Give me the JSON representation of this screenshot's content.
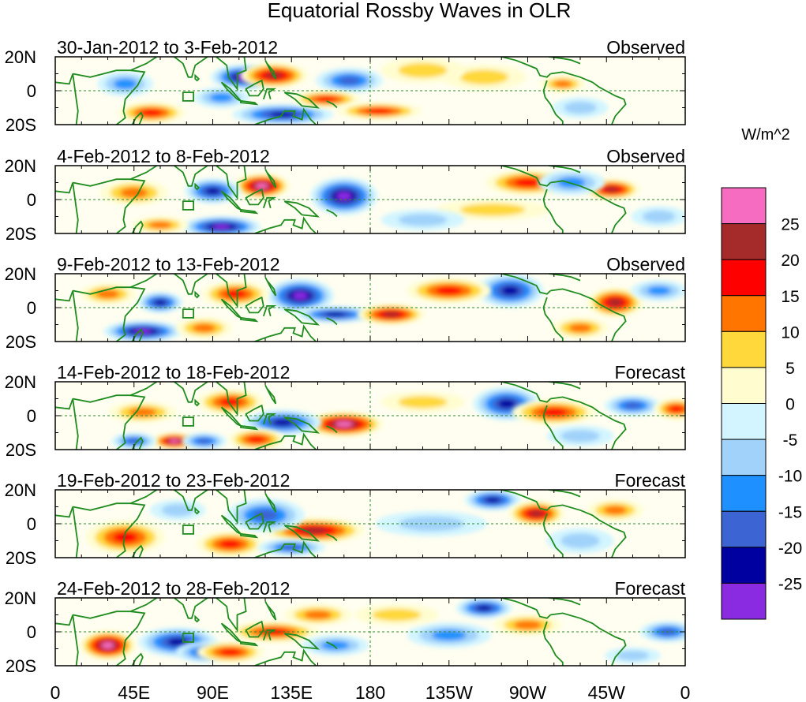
{
  "chart_data": {
    "type": "heatmap",
    "title": "Equatorial Rossby Waves in OLR",
    "units_label": "W/m^2",
    "x_ticks": [
      "0",
      "45E",
      "90E",
      "135E",
      "180",
      "135W",
      "90W",
      "45W",
      "0"
    ],
    "y_ticks": [
      "20N",
      "0",
      "20S"
    ],
    "lon_range": [
      0,
      360
    ],
    "lat_range": [
      -20,
      20
    ],
    "colorbar": {
      "levels": [
        "25",
        "20",
        "15",
        "10",
        "5",
        "0",
        "-5",
        "-10",
        "-15",
        "-20",
        "-25"
      ],
      "colors": [
        "#f66cc0",
        "#a52a2a",
        "#ff0000",
        "#ff7500",
        "#ffd83b",
        "#fffdd0",
        "#d2f5ff",
        "#a0d2fa",
        "#1e90ff",
        "#3c64d2",
        "#0000a0",
        "#8a2be2"
      ]
    },
    "panels": [
      {
        "date_range": "30-Jan-2012 to 3-Feb-2012",
        "status": "Observed",
        "anomalies": [
          {
            "lon": 108,
            "lat": 8,
            "value": -26,
            "wlon": 12,
            "wlat": 6
          },
          {
            "lon": 125,
            "lat": 9,
            "value": 24,
            "wlon": 12,
            "wlat": 6
          },
          {
            "lon": 168,
            "lat": 6,
            "value": -20,
            "wlon": 12,
            "wlat": 6
          },
          {
            "lon": 130,
            "lat": -14,
            "value": -25,
            "wlon": 18,
            "wlat": 5
          },
          {
            "lon": 95,
            "lat": -4,
            "value": -15,
            "wlon": 10,
            "wlat": 5
          },
          {
            "lon": 55,
            "lat": -13,
            "value": 16,
            "wlon": 12,
            "wlat": 5
          },
          {
            "lon": 155,
            "lat": -5,
            "value": 16,
            "wlon": 12,
            "wlat": 4
          },
          {
            "lon": 185,
            "lat": -12,
            "value": 16,
            "wlon": 15,
            "wlat": 4
          },
          {
            "lon": 40,
            "lat": 4,
            "value": -12,
            "wlon": 10,
            "wlat": 6
          },
          {
            "lon": 290,
            "lat": 4,
            "value": 15,
            "wlon": 8,
            "wlat": 4
          },
          {
            "lon": 300,
            "lat": -10,
            "value": -10,
            "wlon": 10,
            "wlat": 5
          },
          {
            "lon": 245,
            "lat": 8,
            "value": 10,
            "wlon": 15,
            "wlat": 6
          },
          {
            "lon": 210,
            "lat": 12,
            "value": 8,
            "wlon": 15,
            "wlat": 6
          }
        ]
      },
      {
        "date_range": "4-Feb-2012 to 8-Feb-2012",
        "status": "Observed",
        "anomalies": [
          {
            "lon": 118,
            "lat": 8,
            "value": 26,
            "wlon": 10,
            "wlat": 6
          },
          {
            "lon": 165,
            "lat": 2,
            "value": -26,
            "wlon": 12,
            "wlat": 9
          },
          {
            "lon": 95,
            "lat": -16,
            "value": -26,
            "wlon": 14,
            "wlat": 5
          },
          {
            "lon": 90,
            "lat": 5,
            "value": -22,
            "wlon": 10,
            "wlat": 6
          },
          {
            "lon": 270,
            "lat": 10,
            "value": 18,
            "wlon": 15,
            "wlat": 6
          },
          {
            "lon": 318,
            "lat": 6,
            "value": 22,
            "wlon": 10,
            "wlat": 5
          },
          {
            "lon": 295,
            "lat": 10,
            "value": -14,
            "wlon": 12,
            "wlat": 6
          },
          {
            "lon": 45,
            "lat": 4,
            "value": 12,
            "wlon": 12,
            "wlat": 6
          },
          {
            "lon": 250,
            "lat": -6,
            "value": 10,
            "wlon": 20,
            "wlat": 5
          },
          {
            "lon": 210,
            "lat": -12,
            "value": -8,
            "wlon": 15,
            "wlat": 5
          },
          {
            "lon": 60,
            "lat": -15,
            "value": 15,
            "wlon": 10,
            "wlat": 4
          },
          {
            "lon": 345,
            "lat": -10,
            "value": -8,
            "wlon": 10,
            "wlat": 5
          }
        ]
      },
      {
        "date_range": "9-Feb-2012 to 13-Feb-2012",
        "status": "Observed",
        "anomalies": [
          {
            "lon": 140,
            "lat": 7,
            "value": -26,
            "wlon": 12,
            "wlat": 8
          },
          {
            "lon": 160,
            "lat": -4,
            "value": -22,
            "wlon": 14,
            "wlat": 4
          },
          {
            "lon": 103,
            "lat": 8,
            "value": 18,
            "wlon": 12,
            "wlat": 6
          },
          {
            "lon": 192,
            "lat": -4,
            "value": 22,
            "wlon": 12,
            "wlat": 5
          },
          {
            "lon": 260,
            "lat": 10,
            "value": -24,
            "wlon": 12,
            "wlat": 8
          },
          {
            "lon": 225,
            "lat": 10,
            "value": 18,
            "wlon": 15,
            "wlat": 6
          },
          {
            "lon": 60,
            "lat": 3,
            "value": -22,
            "wlon": 8,
            "wlat": 5
          },
          {
            "lon": 50,
            "lat": -14,
            "value": -26,
            "wlon": 14,
            "wlat": 5
          },
          {
            "lon": 320,
            "lat": 3,
            "value": 22,
            "wlon": 10,
            "wlat": 7
          },
          {
            "lon": 85,
            "lat": -12,
            "value": 14,
            "wlon": 10,
            "wlat": 5
          },
          {
            "lon": 30,
            "lat": 8,
            "value": 12,
            "wlon": 10,
            "wlat": 5
          },
          {
            "lon": 300,
            "lat": -12,
            "value": 12,
            "wlon": 10,
            "wlat": 5
          },
          {
            "lon": 345,
            "lat": 10,
            "value": -12,
            "wlon": 10,
            "wlat": 5
          }
        ]
      },
      {
        "date_range": "14-Feb-2012 to 18-Feb-2012",
        "status": "Forecast",
        "anomalies": [
          {
            "lon": 165,
            "lat": -5,
            "value": 26,
            "wlon": 14,
            "wlat": 6
          },
          {
            "lon": 130,
            "lat": -4,
            "value": -22,
            "wlon": 14,
            "wlat": 6
          },
          {
            "lon": 100,
            "lat": 8,
            "value": 18,
            "wlon": 12,
            "wlat": 6
          },
          {
            "lon": 115,
            "lat": -14,
            "value": 20,
            "wlon": 10,
            "wlat": 5
          },
          {
            "lon": 258,
            "lat": 7,
            "value": -24,
            "wlon": 12,
            "wlat": 8
          },
          {
            "lon": 285,
            "lat": 2,
            "value": 20,
            "wlon": 15,
            "wlat": 6
          },
          {
            "lon": 330,
            "lat": 6,
            "value": -20,
            "wlon": 10,
            "wlat": 5
          },
          {
            "lon": 355,
            "lat": 4,
            "value": 18,
            "wlon": 8,
            "wlat": 5
          },
          {
            "lon": 68,
            "lat": -15,
            "value": 26,
            "wlon": 8,
            "wlat": 4
          },
          {
            "lon": 45,
            "lat": -15,
            "value": -20,
            "wlon": 8,
            "wlat": 4
          },
          {
            "lon": 85,
            "lat": -15,
            "value": -20,
            "wlon": 8,
            "wlat": 4
          },
          {
            "lon": 50,
            "lat": 2,
            "value": 14,
            "wlon": 12,
            "wlat": 5
          },
          {
            "lon": 210,
            "lat": 8,
            "value": 8,
            "wlon": 15,
            "wlat": 5
          },
          {
            "lon": 300,
            "lat": -12,
            "value": -10,
            "wlon": 12,
            "wlat": 5
          }
        ]
      },
      {
        "date_range": "19-Feb-2012 to 23-Feb-2012",
        "status": "Forecast",
        "anomalies": [
          {
            "lon": 148,
            "lat": -4,
            "value": 22,
            "wlon": 18,
            "wlat": 6
          },
          {
            "lon": 40,
            "lat": -8,
            "value": 18,
            "wlon": 14,
            "wlat": 8
          },
          {
            "lon": 100,
            "lat": -12,
            "value": 18,
            "wlon": 12,
            "wlat": 6
          },
          {
            "lon": 120,
            "lat": 5,
            "value": -18,
            "wlon": 14,
            "wlat": 8
          },
          {
            "lon": 250,
            "lat": 14,
            "value": -24,
            "wlon": 10,
            "wlat": 5
          },
          {
            "lon": 275,
            "lat": 6,
            "value": 22,
            "wlon": 10,
            "wlat": 6
          },
          {
            "lon": 135,
            "lat": -14,
            "value": -20,
            "wlon": 12,
            "wlat": 4
          },
          {
            "lon": 320,
            "lat": 8,
            "value": 14,
            "wlon": 10,
            "wlat": 5
          },
          {
            "lon": 300,
            "lat": -10,
            "value": -10,
            "wlon": 12,
            "wlat": 6
          },
          {
            "lon": 215,
            "lat": 0,
            "value": -8,
            "wlon": 20,
            "wlat": 6
          },
          {
            "lon": 70,
            "lat": 8,
            "value": -8,
            "wlon": 10,
            "wlat": 5
          }
        ]
      },
      {
        "date_range": "24-Feb-2012 to 28-Feb-2012",
        "status": "Forecast",
        "anomalies": [
          {
            "lon": 30,
            "lat": -8,
            "value": 26,
            "wlon": 10,
            "wlat": 7
          },
          {
            "lon": 70,
            "lat": -6,
            "value": -22,
            "wlon": 14,
            "wlat": 7
          },
          {
            "lon": 85,
            "lat": -12,
            "value": -18,
            "wlon": 10,
            "wlat": 5
          },
          {
            "lon": 100,
            "lat": -12,
            "value": 16,
            "wlon": 12,
            "wlat": 5
          },
          {
            "lon": 125,
            "lat": 0,
            "value": 18,
            "wlon": 16,
            "wlat": 5
          },
          {
            "lon": 160,
            "lat": -8,
            "value": -15,
            "wlon": 12,
            "wlat": 5
          },
          {
            "lon": 150,
            "lat": 10,
            "value": 14,
            "wlon": 12,
            "wlat": 5
          },
          {
            "lon": 245,
            "lat": 14,
            "value": -24,
            "wlon": 10,
            "wlat": 5
          },
          {
            "lon": 225,
            "lat": -2,
            "value": -12,
            "wlon": 15,
            "wlat": 6
          },
          {
            "lon": 270,
            "lat": 4,
            "value": 12,
            "wlon": 12,
            "wlat": 5
          },
          {
            "lon": 350,
            "lat": 0,
            "value": -16,
            "wlon": 10,
            "wlat": 5
          },
          {
            "lon": 195,
            "lat": 10,
            "value": 10,
            "wlon": 15,
            "wlat": 5
          },
          {
            "lon": 330,
            "lat": -14,
            "value": -10,
            "wlon": 10,
            "wlat": 4
          }
        ]
      }
    ]
  }
}
